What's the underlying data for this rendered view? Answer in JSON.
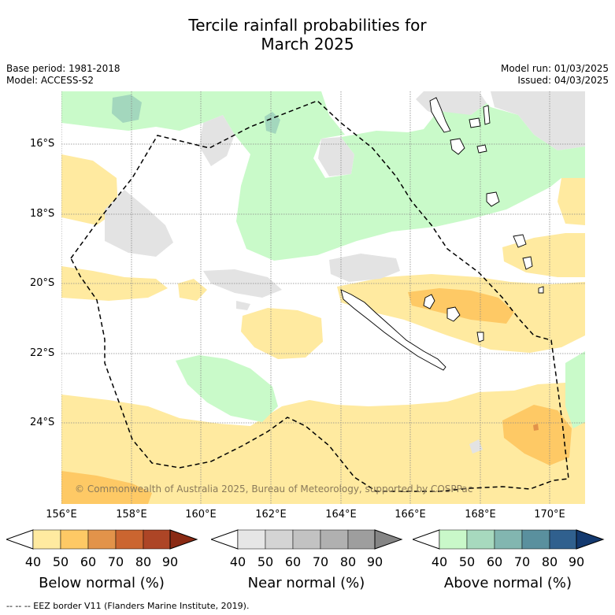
{
  "title_line1": "Tercile rainfall probabilities for",
  "title_line2": "March 2025",
  "base_period": "Base period: 1981-2018",
  "model": "Model: ACCESS-S2",
  "model_run": "Model run: 01/03/2025",
  "issued": "Issued: 04/03/2025",
  "latitudes": [
    "16°S",
    "18°S",
    "20°S",
    "22°S",
    "24°S"
  ],
  "longitudes": [
    "156°E",
    "158°E",
    "160°E",
    "162°E",
    "164°E",
    "166°E",
    "168°E",
    "170°E"
  ],
  "copyright": "© Commonwealth of Australia 2025, Bureau of Meteorology, supported by COSPPac",
  "legends": [
    {
      "caption": "Below normal (%)",
      "ticks": [
        "40",
        "50",
        "60",
        "70",
        "80",
        "90"
      ],
      "colors": [
        "#ffffff",
        "#ffeaa0",
        "#fec965",
        "#e2934a",
        "#cb6530",
        "#ad4526",
        "#8a2a14"
      ]
    },
    {
      "caption": "Near normal (%)",
      "ticks": [
        "40",
        "50",
        "60",
        "70",
        "80",
        "90"
      ],
      "colors": [
        "#ffffff",
        "#e6e6e6",
        "#d4d4d4",
        "#c2c2c2",
        "#b0b0b0",
        "#9e9e9e",
        "#858585"
      ]
    },
    {
      "caption": "Above normal (%)",
      "ticks": [
        "40",
        "50",
        "60",
        "70",
        "80",
        "90"
      ],
      "colors": [
        "#ffffff",
        "#c9f8c9",
        "#a7d9be",
        "#82b6b0",
        "#5a909e",
        "#30608e",
        "#13396f"
      ]
    }
  ],
  "eez_note": "--  --  -- EEZ border V11 (Flanders Marine Institute, 2019).",
  "palette": {
    "below_50": "#ffeaa0",
    "below_60": "#fec965",
    "below_70": "#e2934a",
    "near_50": "#e3e3e3",
    "above_50": "#c9fac9",
    "above_60": "#a3d7bd"
  }
}
